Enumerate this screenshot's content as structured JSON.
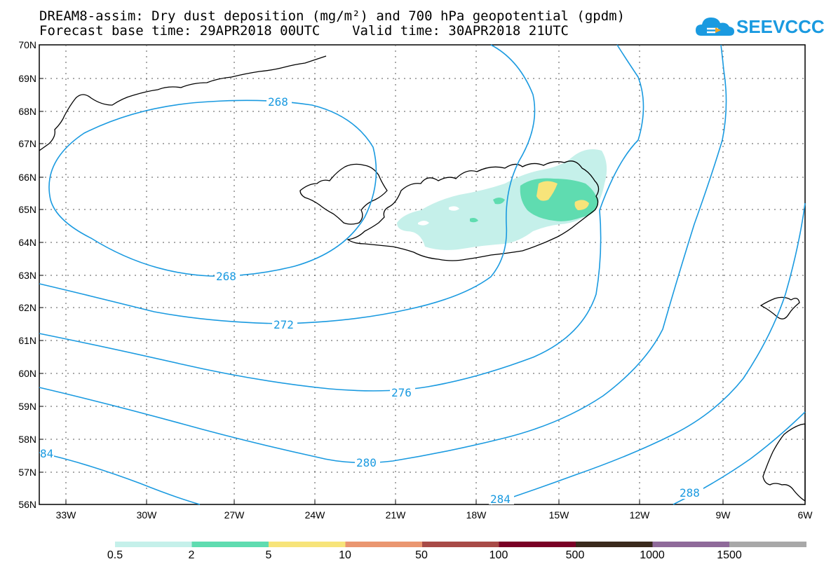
{
  "header": {
    "title_line1": "DREAM8-assim: Dry dust deposition (mg/m²) and 700 hPa geopotential (gpdm)",
    "title_line2": "Forecast base time: 29APR2018 00UTC    Valid time: 30APR2018 21UTC",
    "logo_text": "SEEVCCC"
  },
  "map": {
    "lat_labels": [
      "70N",
      "69N",
      "68N",
      "67N",
      "66N",
      "65N",
      "64N",
      "63N",
      "62N",
      "61N",
      "60N",
      "59N",
      "58N",
      "57N",
      "56N"
    ],
    "lon_labels": [
      "33W",
      "30W",
      "27W",
      "24W",
      "21W",
      "18W",
      "15W",
      "12W",
      "9W",
      "6W"
    ],
    "contour_labels": {
      "c268_top": "268",
      "c268_bottom": "268",
      "c272": "272",
      "c276": "276",
      "c280": "280",
      "c284": "284",
      "c284_left": "84",
      "c288": "288"
    },
    "colors": {
      "contour": "#1a9ae0",
      "coast": "#000000"
    }
  },
  "legend": {
    "labels": [
      "0.5",
      "2",
      "5",
      "10",
      "50",
      "100",
      "500",
      "1000",
      "1500"
    ],
    "colors": [
      "#c5f0ea",
      "#5fdcb0",
      "#f7e47a",
      "#ea9670",
      "#a84b47",
      "#7a0026",
      "#3a2a1c",
      "#8f6a9a",
      "#a8a8a8"
    ]
  }
}
